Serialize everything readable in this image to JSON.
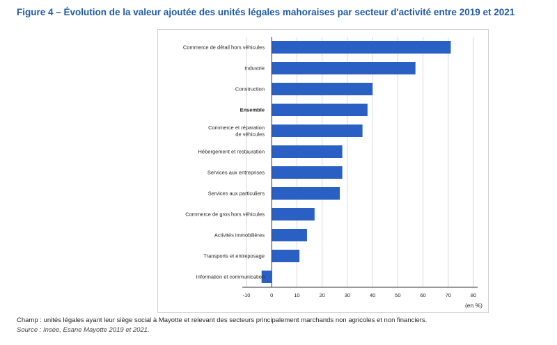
{
  "title": "Figure 4 – Évolution de la valeur ajoutée des unités légales mahoraises par secteur d'activité entre 2019 et 2021",
  "note": "Champ : unités légales ayant leur siège social à Mayotte et relevant des secteurs principalement marchands non agricoles et non financiers.",
  "source": "Source : Insee, Esane Mayotte 2019 et 2021.",
  "chart_data": {
    "type": "bar",
    "orientation": "horizontal",
    "unit": "(en %)",
    "categories": [
      [
        "Commerce de détail hors véhicules"
      ],
      [
        "Industrie"
      ],
      [
        "Construction"
      ],
      [
        "Ensemble"
      ],
      [
        "Commerce et réparation",
        "de véhicules"
      ],
      [
        "Hébergement et restauration"
      ],
      [
        "Services aux entreprises"
      ],
      [
        "Services aux particuliers"
      ],
      [
        "Commerce de gros hors véhicules"
      ],
      [
        "Activités immobilières"
      ],
      [
        "Transports et entreposage"
      ],
      [
        "Information et communication"
      ]
    ],
    "bold_categories": [
      "Ensemble"
    ],
    "values": [
      71,
      57,
      40,
      38,
      36,
      28,
      28,
      27,
      17,
      14,
      11,
      -4
    ],
    "xlim": [
      -10,
      80
    ],
    "xticks": [
      -10,
      0,
      10,
      20,
      30,
      40,
      50,
      60,
      70,
      80
    ],
    "grid": true,
    "bar_color": "#2a5fc4"
  }
}
